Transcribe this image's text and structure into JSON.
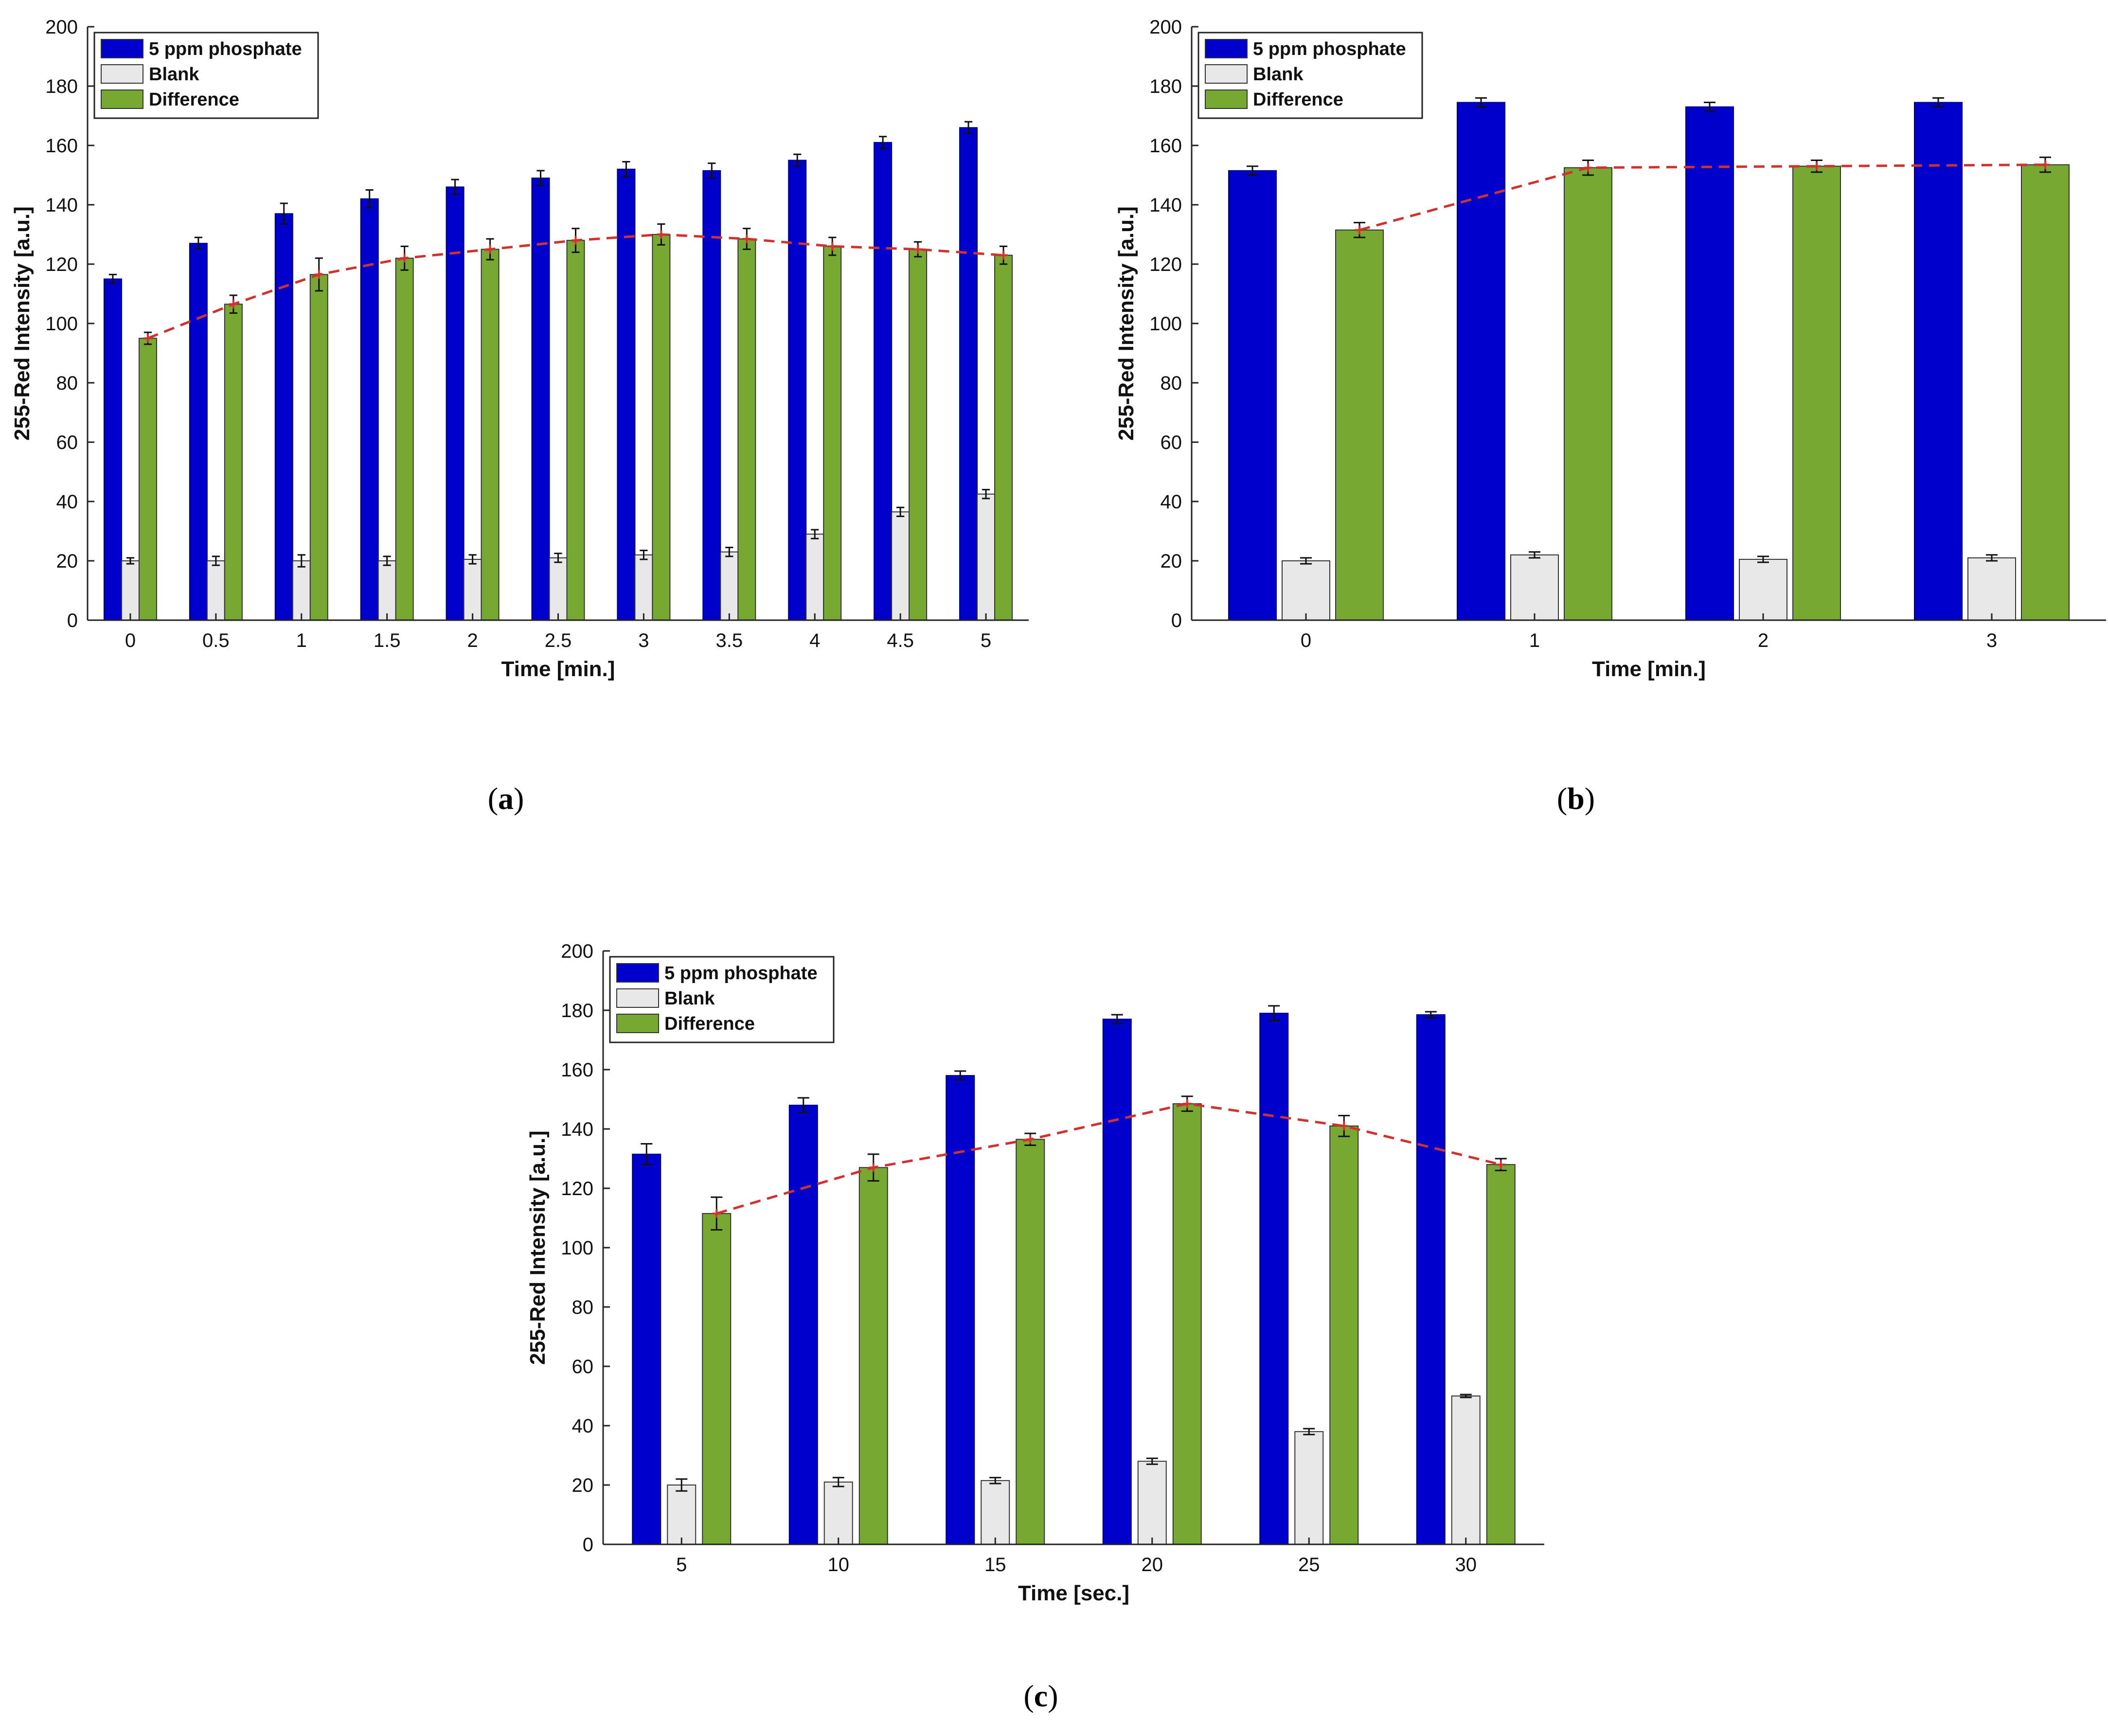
{
  "colors": {
    "phosphate": "#0000cc",
    "blank": "#e8e8e8",
    "difference": "#76a832",
    "trend": "#d0322e"
  },
  "legend": {
    "phosphate": "5 ppm phosphate",
    "blank": "Blank",
    "difference": "Difference"
  },
  "captions": {
    "a": "a",
    "b": "b",
    "c": "c"
  },
  "chart_data": [
    {
      "id": "a",
      "type": "bar",
      "title": "",
      "xlabel": "Time [min.]",
      "ylabel": "255-Red Intensity [a.u.]",
      "ylim": [
        0,
        200
      ],
      "yticks": [
        0,
        20,
        40,
        60,
        80,
        100,
        120,
        140,
        160,
        180,
        200
      ],
      "categories": [
        "0",
        "0.5",
        "1",
        "1.5",
        "2",
        "2.5",
        "3",
        "3.5",
        "4",
        "4.5",
        "5"
      ],
      "series": [
        {
          "name": "5 ppm phosphate",
          "values": [
            115,
            127,
            137,
            142,
            146,
            149,
            152,
            151.5,
            155,
            161,
            166
          ],
          "errors": [
            1.5,
            2,
            3.5,
            3,
            2.5,
            2.5,
            2.5,
            2.5,
            2,
            2,
            2
          ]
        },
        {
          "name": "Blank",
          "values": [
            20,
            20,
            20,
            20,
            20.5,
            21,
            22,
            23,
            29,
            36.5,
            42.5
          ],
          "errors": [
            1,
            1.5,
            2,
            1.5,
            1.5,
            1.5,
            1.5,
            1.5,
            1.5,
            1.5,
            1.5
          ]
        },
        {
          "name": "Difference",
          "values": [
            95,
            106.5,
            116.5,
            122,
            125,
            128,
            130,
            128.5,
            126,
            125,
            123
          ],
          "errors": [
            2,
            3,
            5.5,
            4,
            3.5,
            4,
            3.5,
            3.5,
            3,
            2.5,
            3
          ]
        }
      ],
      "trend": "Difference",
      "legend_position": "top-left"
    },
    {
      "id": "b",
      "type": "bar",
      "title": "",
      "xlabel": "Time [min.]",
      "ylabel": "255-Red Intensity [a.u.]",
      "ylim": [
        0,
        200
      ],
      "yticks": [
        0,
        20,
        40,
        60,
        80,
        100,
        120,
        140,
        160,
        180,
        200
      ],
      "categories": [
        "0",
        "1",
        "2",
        "3"
      ],
      "series": [
        {
          "name": "5 ppm phosphate",
          "values": [
            151.5,
            174.5,
            173,
            174.5
          ],
          "errors": [
            1.5,
            1.5,
            1.5,
            1.5
          ]
        },
        {
          "name": "Blank",
          "values": [
            20,
            22,
            20.5,
            21
          ],
          "errors": [
            1,
            1,
            1,
            1
          ]
        },
        {
          "name": "Difference",
          "values": [
            131.5,
            152.5,
            153,
            153.5
          ],
          "errors": [
            2.5,
            2.5,
            2,
            2.5
          ]
        }
      ],
      "trend": "Difference",
      "legend_position": "top-left"
    },
    {
      "id": "c",
      "type": "bar",
      "title": "",
      "xlabel": "Time [sec.]",
      "ylabel": "255-Red Intensity [a.u.]",
      "ylim": [
        0,
        200
      ],
      "yticks": [
        0,
        20,
        40,
        60,
        80,
        100,
        120,
        140,
        160,
        180,
        200
      ],
      "categories": [
        "5",
        "10",
        "15",
        "20",
        "25",
        "30"
      ],
      "series": [
        {
          "name": "5 ppm phosphate",
          "values": [
            131.5,
            148,
            158,
            177,
            179,
            178.5
          ],
          "errors": [
            3.5,
            2.5,
            1.5,
            1.5,
            2.5,
            1
          ]
        },
        {
          "name": "Blank",
          "values": [
            20,
            21,
            21.5,
            28,
            38,
            50
          ],
          "errors": [
            2,
            1.5,
            1,
            1,
            1,
            0.5
          ]
        },
        {
          "name": "Difference",
          "values": [
            111.5,
            127,
            136.5,
            148.5,
            141,
            128
          ],
          "errors": [
            5.5,
            4.5,
            2,
            2.5,
            3.5,
            2
          ]
        }
      ],
      "trend": "Difference",
      "legend_position": "top-left"
    }
  ]
}
